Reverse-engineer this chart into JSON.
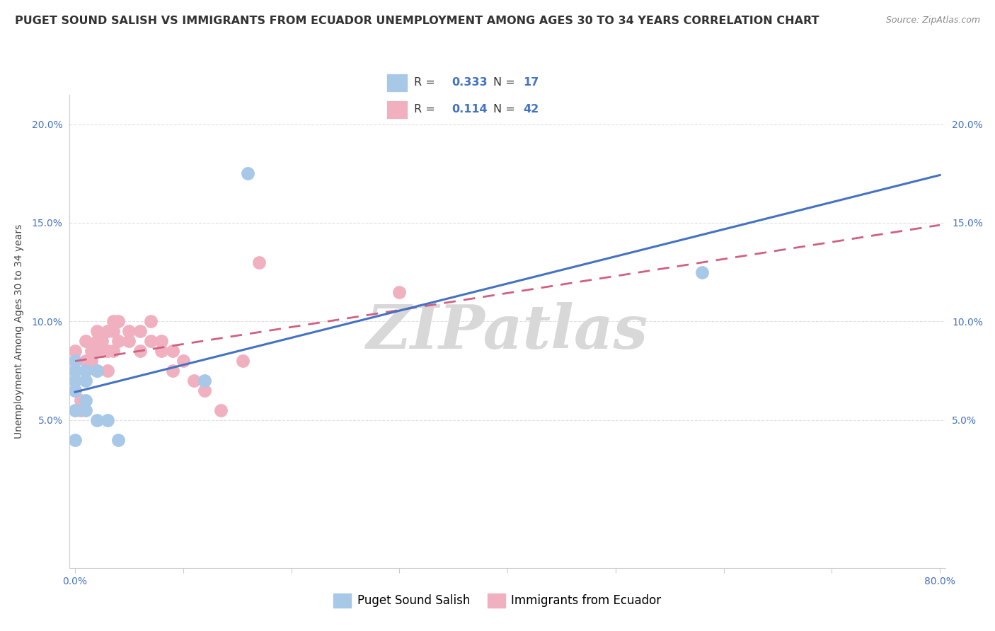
{
  "title": "PUGET SOUND SALISH VS IMMIGRANTS FROM ECUADOR UNEMPLOYMENT AMONG AGES 30 TO 34 YEARS CORRELATION CHART",
  "source": "Source: ZipAtlas.com",
  "ylabel": "Unemployment Among Ages 30 to 34 years",
  "background_color": "#ffffff",
  "grid_color": "#e0e0e0",
  "blue_color": "#a8c8e8",
  "pink_color": "#f0b0c0",
  "blue_line_color": "#4472c4",
  "pink_line_color": "#d06080",
  "R_blue": 0.333,
  "N_blue": 17,
  "R_pink": 0.114,
  "N_pink": 42,
  "legend_label_blue": "Puget Sound Salish",
  "legend_label_pink": "Immigrants from Ecuador",
  "xlim": [
    -0.005,
    0.805
  ],
  "ylim": [
    -0.025,
    0.215
  ],
  "blue_x": [
    0.0,
    0.0,
    0.0,
    0.0,
    0.0,
    0.0,
    0.01,
    0.01,
    0.01,
    0.01,
    0.02,
    0.02,
    0.03,
    0.04,
    0.12,
    0.16,
    0.58
  ],
  "blue_y": [
    0.055,
    0.065,
    0.07,
    0.075,
    0.08,
    0.04,
    0.07,
    0.075,
    0.06,
    0.055,
    0.075,
    0.05,
    0.05,
    0.04,
    0.07,
    0.175,
    0.125
  ],
  "pink_x": [
    0.0,
    0.0,
    0.0,
    0.0,
    0.005,
    0.005,
    0.01,
    0.01,
    0.01,
    0.015,
    0.015,
    0.02,
    0.02,
    0.02,
    0.02,
    0.025,
    0.025,
    0.03,
    0.03,
    0.03,
    0.035,
    0.035,
    0.035,
    0.04,
    0.04,
    0.05,
    0.05,
    0.06,
    0.06,
    0.07,
    0.07,
    0.08,
    0.08,
    0.09,
    0.09,
    0.1,
    0.11,
    0.12,
    0.135,
    0.155,
    0.17,
    0.3
  ],
  "pink_y": [
    0.075,
    0.085,
    0.07,
    0.065,
    0.055,
    0.06,
    0.075,
    0.08,
    0.09,
    0.08,
    0.085,
    0.09,
    0.095,
    0.085,
    0.075,
    0.085,
    0.09,
    0.095,
    0.085,
    0.075,
    0.085,
    0.095,
    0.1,
    0.09,
    0.1,
    0.09,
    0.095,
    0.085,
    0.095,
    0.09,
    0.1,
    0.085,
    0.09,
    0.085,
    0.075,
    0.08,
    0.07,
    0.065,
    0.055,
    0.08,
    0.13,
    0.115
  ],
  "watermark": "ZIPatlas",
  "watermark_color": "#d8d8d8",
  "title_fontsize": 11.5,
  "source_fontsize": 9,
  "axis_label_fontsize": 10,
  "tick_fontsize": 10,
  "legend_fontsize": 12
}
